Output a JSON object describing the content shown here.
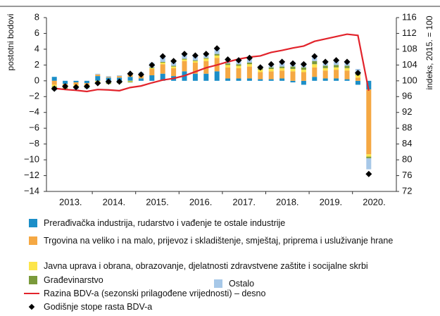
{
  "chart_data": {
    "type": "bar",
    "y_label": "postotni bodovi",
    "y2_label": "indeks, 2015. = 100",
    "categories": [
      null,
      null,
      null,
      null,
      null,
      null,
      null,
      null,
      null,
      null,
      null,
      null,
      null,
      null,
      null,
      null,
      null,
      null,
      null,
      null,
      null,
      null,
      null,
      null,
      null,
      null,
      null,
      null,
      null,
      null
    ],
    "years": [
      "2013.",
      "2014.",
      "2015.",
      "2016.",
      "2017.",
      "2018.",
      "2019.",
      "2020."
    ],
    "ylim": [
      -14,
      8
    ],
    "yticks": [
      8,
      6,
      4,
      2,
      0,
      {
        "value": -2,
        "label": "−2"
      },
      {
        "value": -4,
        "label": "−4"
      },
      {
        "value": -6,
        "label": "−6"
      },
      {
        "value": -8,
        "label": "−8"
      },
      {
        "value": -10,
        "label": "−10"
      },
      {
        "value": -12,
        "label": "−12"
      },
      {
        "value": -14,
        "label": "−14"
      }
    ],
    "y2lim": [
      72,
      116
    ],
    "y2ticks": [
      116,
      112,
      108,
      104,
      100,
      96,
      92,
      88,
      84,
      80,
      76,
      72
    ],
    "series": [
      {
        "name": "Prerađivačka industrija, rudarstvo i vađenje te ostale industrije",
        "type": "bar",
        "color": "#1b8ec8",
        "values": [
          0.5,
          -0.4,
          -0.2,
          -0.3,
          0.6,
          0.4,
          0.4,
          0.5,
          0.3,
          0.7,
          0.9,
          0.6,
          1.2,
          0.9,
          0.9,
          1.2,
          0.3,
          0.3,
          0.3,
          0.2,
          0.2,
          0.3,
          -0.2,
          -0.5,
          0.5,
          0.3,
          0.3,
          0.2,
          -0.5,
          -1.1
        ]
      },
      {
        "name": "Trgovina na veliko i na malo, prijevoz i skladištenje, smještaj, priprema i usluživanje hrane",
        "type": "bar",
        "color": "#f5a843",
        "values": [
          -0.5,
          -0.3,
          -0.3,
          -0.2,
          0.2,
          0.1,
          0.2,
          0.3,
          0.4,
          0.8,
          1.2,
          1.0,
          1.3,
          1.4,
          1.6,
          1.7,
          1.4,
          1.3,
          1.5,
          0.9,
          1.0,
          1.0,
          1.2,
          1.1,
          1.2,
          1.0,
          1.1,
          1.1,
          0.4,
          -8.2
        ]
      },
      {
        "name": "Javna uprava i obrana, obrazovanje, djelatnosti zdravstvene zaštite i socijalne skrbi",
        "type": "bar",
        "color": "#fce54a",
        "values": [
          -0.2,
          -0.1,
          -0.2,
          -0.2,
          -0.2,
          -0.2,
          -0.1,
          -0.1,
          0.1,
          0.1,
          0.2,
          0.2,
          0.2,
          0.2,
          0.3,
          0.3,
          0.3,
          0.3,
          0.3,
          0.3,
          0.3,
          0.3,
          0.3,
          0.3,
          0.4,
          0.3,
          0.3,
          0.3,
          0.3,
          -0.3
        ]
      },
      {
        "name": "Građevinarstvo",
        "type": "bar",
        "color": "#7a9a3b",
        "values": [
          -0.3,
          -0.2,
          -0.2,
          -0.2,
          -0.2,
          -0.2,
          -0.2,
          -0.1,
          0.0,
          0.1,
          0.1,
          0.1,
          0.1,
          0.1,
          0.1,
          0.2,
          0.2,
          0.2,
          0.2,
          0.2,
          0.2,
          0.2,
          0.3,
          0.3,
          0.4,
          0.3,
          0.3,
          0.3,
          0.2,
          -0.2
        ]
      },
      {
        "name": "Ostalo",
        "type": "bar",
        "color": "#a7c8e8",
        "values": [
          -0.2,
          -0.1,
          -0.2,
          -0.1,
          0.1,
          0.1,
          0.1,
          0.2,
          0.3,
          0.6,
          0.7,
          0.6,
          0.6,
          0.6,
          0.5,
          0.7,
          0.5,
          0.5,
          0.6,
          0.3,
          0.4,
          0.6,
          0.6,
          0.6,
          0.6,
          0.5,
          0.6,
          0.5,
          0.6,
          -1.4
        ]
      },
      {
        "name": "Razina BDV-a (sezonski prilagođene vrijednosti) – desno",
        "type": "line",
        "axis": "y2",
        "color": "#e2232b",
        "values": [
          98.1,
          97.8,
          97.6,
          97.3,
          97.8,
          97.7,
          97.5,
          98.3,
          98.7,
          99.5,
          100.2,
          100.6,
          101.3,
          102.3,
          103.3,
          104.0,
          104.8,
          105.5,
          106.0,
          106.3,
          107.2,
          107.7,
          108.3,
          108.8,
          110.0,
          110.6,
          111.2,
          111.8,
          111.5,
          97.5
        ]
      },
      {
        "name": "Godišnje stope rasta BDV-a",
        "type": "scatter",
        "color": "#000000",
        "values": [
          -1.0,
          -0.7,
          -0.8,
          -0.7,
          -0.3,
          -0.1,
          -0.1,
          0.9,
          0.8,
          2.0,
          3.1,
          2.5,
          3.4,
          3.2,
          3.4,
          4.1,
          2.7,
          2.6,
          2.9,
          1.7,
          2.1,
          2.4,
          2.2,
          2.1,
          3.1,
          2.4,
          2.6,
          2.4,
          1.0,
          -11.8
        ]
      }
    ]
  }
}
